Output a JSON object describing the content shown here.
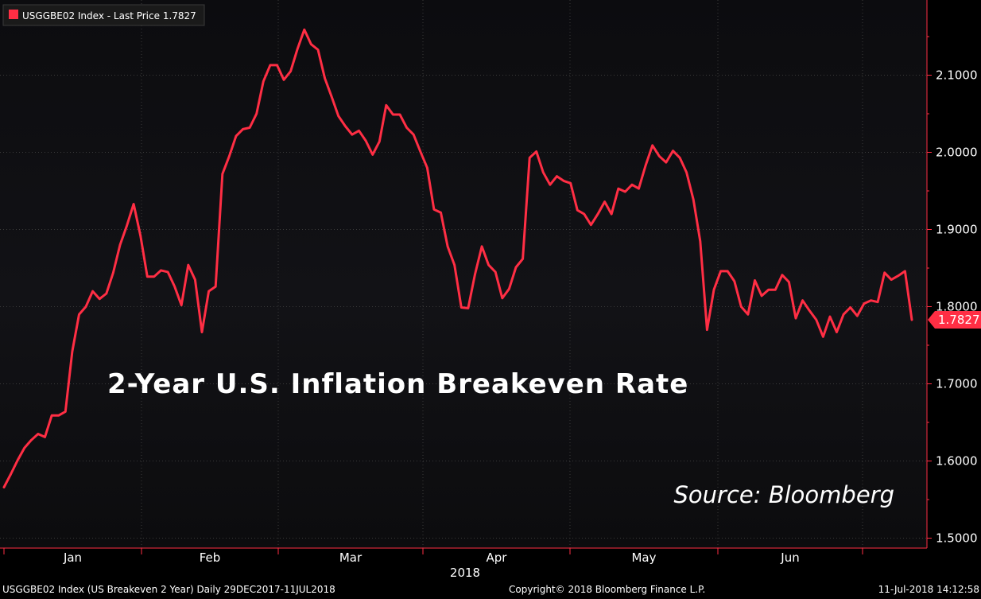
{
  "legend": {
    "series_name": "USGGBE02 Index",
    "last_price_label": "Last Price",
    "last_price_value": "1.7827",
    "color": "#ff2e44"
  },
  "title": "2-Year U.S. Inflation Breakeven Rate",
  "source": "Source:  Bloomberg",
  "last_value_tag": "1.7827",
  "footer": {
    "left": "USGGBE02 Index (US Breakeven 2 Year)  Daily 29DEC2017-11JUL2018",
    "center": "Copyright© 2018 Bloomberg Finance L.P.",
    "right": "11-Jul-2018 14:12:58"
  },
  "colors": {
    "line": "#ff2e44",
    "axis": "#ff2e44",
    "grid": "#3a3a3a",
    "text": "#ffffff"
  },
  "chart_data": {
    "type": "line",
    "title": "2-Year U.S. Inflation Breakeven Rate",
    "xlabel": "2018",
    "ylabel": "",
    "ylim": [
      1.5,
      2.2
    ],
    "yticks": [
      "1.5000",
      "1.6000",
      "1.7000",
      "1.8000",
      "1.9000",
      "2.0000",
      "2.1000"
    ],
    "months": [
      "Jan",
      "Feb",
      "Mar",
      "Apr",
      "May",
      "Jun"
    ],
    "year_label": "2018",
    "series": [
      {
        "name": "USGGBE02 Index",
        "values": [
          1.566,
          1.583,
          1.601,
          1.617,
          1.627,
          1.635,
          1.631,
          1.659,
          1.659,
          1.664,
          1.742,
          1.79,
          1.8,
          1.82,
          1.81,
          1.817,
          1.844,
          1.88,
          1.905,
          1.933,
          1.892,
          1.839,
          1.839,
          1.847,
          1.845,
          1.826,
          1.802,
          1.854,
          1.835,
          1.767,
          1.82,
          1.826,
          1.972,
          1.995,
          2.021,
          2.03,
          2.032,
          2.05,
          2.092,
          2.113,
          2.113,
          2.094,
          2.105,
          2.134,
          2.159,
          2.14,
          2.133,
          2.096,
          2.072,
          2.047,
          2.034,
          2.023,
          2.028,
          2.015,
          1.997,
          2.014,
          2.061,
          2.049,
          2.049,
          2.032,
          2.023,
          2.001,
          1.98,
          1.926,
          1.922,
          1.878,
          1.854,
          1.799,
          1.798,
          1.842,
          1.878,
          1.854,
          1.845,
          1.811,
          1.823,
          1.851,
          1.862,
          1.993,
          2.001,
          1.974,
          1.958,
          1.969,
          1.963,
          1.96,
          1.925,
          1.92,
          1.906,
          1.92,
          1.936,
          1.92,
          1.953,
          1.949,
          1.958,
          1.953,
          1.983,
          2.009,
          1.995,
          1.987,
          2.002,
          1.993,
          1.974,
          1.939,
          1.885,
          1.77,
          1.822,
          1.846,
          1.846,
          1.833,
          1.8,
          1.79,
          1.834,
          1.814,
          1.822,
          1.822,
          1.841,
          1.832,
          1.785,
          1.808,
          1.795,
          1.783,
          1.761,
          1.787,
          1.767,
          1.79,
          1.799,
          1.788,
          1.804,
          1.808,
          1.806,
          1.844,
          1.835,
          1.84,
          1.846,
          1.783
        ]
      }
    ]
  }
}
